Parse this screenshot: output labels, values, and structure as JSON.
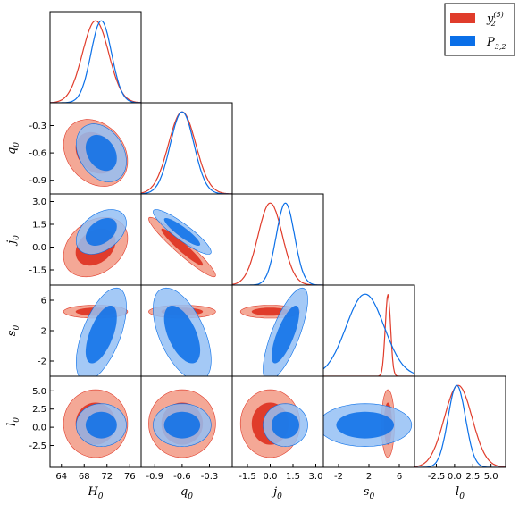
{
  "chart_data": {
    "type": "triangle-corner",
    "title": "",
    "colors": {
      "red": "#e03c2b",
      "red_light": "#f4a896",
      "blue": "#0a6fe8",
      "blue_light": "#94bff4"
    },
    "legend": {
      "placement": "top-right",
      "entries": [
        {
          "label_base": "y",
          "label_sub": "2",
          "label_sup": "(5)",
          "color": "#e03c2b"
        },
        {
          "label_base": "P",
          "label_sub": "3,2",
          "label_sup": "",
          "color": "#0a6fe8"
        }
      ]
    },
    "parameters": [
      {
        "name": "H",
        "sub": "0",
        "range": [
          62,
          78
        ],
        "ticks": [
          "64",
          "68",
          "72",
          "76"
        ],
        "tickvals": [
          64,
          68,
          72,
          76
        ]
      },
      {
        "name": "q",
        "sub": "0",
        "range": [
          -1.05,
          -0.05
        ],
        "ticks": [
          "-0.9",
          "-0.6",
          "-0.3"
        ],
        "tickvals": [
          -0.9,
          -0.6,
          -0.3
        ]
      },
      {
        "name": "j",
        "sub": "0",
        "range": [
          -2.5,
          3.5
        ],
        "ticks": [
          "-1.5",
          "0.0",
          "1.5",
          "3.0"
        ],
        "tickvals": [
          -1.5,
          0.0,
          1.5,
          3.0
        ]
      },
      {
        "name": "s",
        "sub": "0",
        "range": [
          -4,
          8
        ],
        "ticks": [
          "-2",
          "2",
          "6"
        ],
        "tickvals": [
          -2,
          2,
          6
        ]
      },
      {
        "name": "l",
        "sub": "0",
        "range": [
          -5.5,
          7
        ],
        "ticks": [
          "-2.5",
          "0.0",
          "2.5",
          "5.0"
        ],
        "tickvals": [
          -2.5,
          0.0,
          2.5,
          5.0
        ]
      }
    ],
    "series": [
      {
        "name": "y2(5)",
        "color": "#e03c2b",
        "means": [
          70,
          -0.6,
          0,
          4.5,
          0.5
        ],
        "stds": [
          2.3,
          0.15,
          0.8,
          0.35,
          1.9
        ],
        "corr": [
          [
            1,
            -0.25,
            0.3,
            0,
            0
          ],
          [
            -0.25,
            1,
            -0.95,
            0,
            0
          ],
          [
            0.3,
            -0.95,
            1,
            0,
            0
          ],
          [
            0,
            0,
            0,
            1,
            0
          ],
          [
            0,
            0,
            0,
            0,
            1
          ]
        ]
      },
      {
        "name": "P3,2",
        "color": "#0a6fe8",
        "means": [
          71,
          -0.6,
          1.0,
          1.5,
          0.3
        ],
        "stds": [
          1.8,
          0.13,
          0.6,
          2.5,
          1.2
        ],
        "corr": [
          [
            1,
            -0.3,
            0.4,
            0.6,
            0
          ],
          [
            -0.3,
            1,
            -0.9,
            -0.55,
            0
          ],
          [
            0.4,
            -0.9,
            1,
            0.75,
            0
          ],
          [
            0.6,
            -0.55,
            0.75,
            1,
            0
          ],
          [
            0,
            0,
            0,
            0,
            1
          ]
        ]
      }
    ]
  }
}
